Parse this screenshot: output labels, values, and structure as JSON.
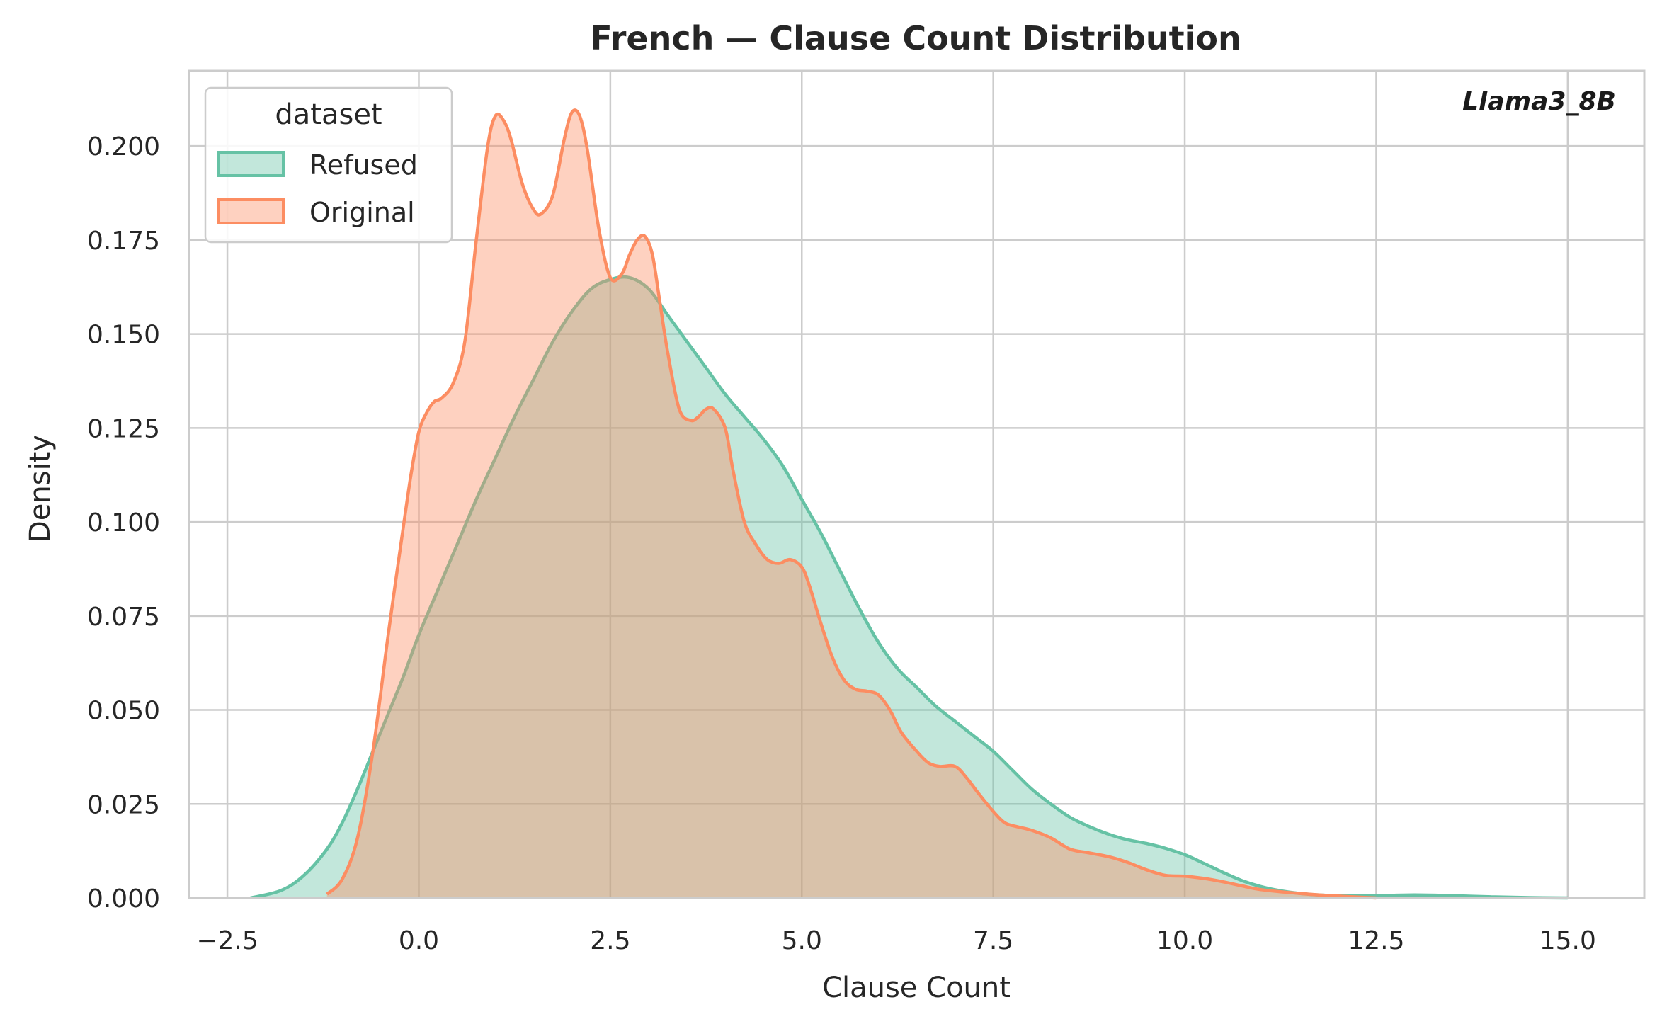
{
  "chart_data": {
    "type": "area",
    "title": "French — Clause Count Distribution",
    "xlabel": "Clause Count",
    "ylabel": "Density",
    "annotation": "Llama3_8B",
    "xlim": [
      -3.0,
      16.0
    ],
    "ylim": [
      0.0,
      0.22
    ],
    "xticks": [
      -2.5,
      0.0,
      2.5,
      5.0,
      7.5,
      10.0,
      12.5,
      15.0
    ],
    "xtick_labels": [
      "−2.5",
      "0.0",
      "2.5",
      "5.0",
      "7.5",
      "10.0",
      "12.5",
      "15.0"
    ],
    "yticks": [
      0.0,
      0.025,
      0.05,
      0.075,
      0.1,
      0.125,
      0.15,
      0.175,
      0.2
    ],
    "ytick_labels": [
      "0.000",
      "0.025",
      "0.050",
      "0.075",
      "0.100",
      "0.125",
      "0.150",
      "0.175",
      "0.200"
    ],
    "grid": true,
    "legend": {
      "title": "dataset",
      "placement": "top-left"
    },
    "series": [
      {
        "name": "Refused",
        "color": "#66c2a5",
        "x": [
          -2.2,
          -1.8,
          -1.5,
          -1.2,
          -1.0,
          -0.8,
          -0.6,
          -0.4,
          -0.2,
          0.0,
          0.25,
          0.5,
          0.75,
          1.0,
          1.25,
          1.5,
          1.75,
          2.0,
          2.25,
          2.5,
          2.75,
          3.0,
          3.25,
          3.5,
          3.75,
          4.0,
          4.25,
          4.5,
          4.75,
          5.0,
          5.25,
          5.5,
          5.75,
          6.0,
          6.25,
          6.5,
          6.75,
          7.0,
          7.25,
          7.5,
          7.75,
          8.0,
          8.25,
          8.5,
          8.75,
          9.0,
          9.25,
          9.5,
          9.75,
          10.0,
          10.25,
          10.5,
          10.75,
          11.0,
          11.25,
          11.5,
          11.75,
          12.0,
          12.5,
          13.0,
          13.5,
          14.0,
          14.5,
          15.0
        ],
        "y": [
          0.0,
          0.002,
          0.006,
          0.013,
          0.02,
          0.029,
          0.039,
          0.049,
          0.059,
          0.07,
          0.082,
          0.094,
          0.106,
          0.117,
          0.128,
          0.138,
          0.148,
          0.156,
          0.162,
          0.1645,
          0.165,
          0.162,
          0.155,
          0.148,
          0.141,
          0.134,
          0.128,
          0.122,
          0.115,
          0.106,
          0.097,
          0.087,
          0.077,
          0.068,
          0.061,
          0.056,
          0.051,
          0.047,
          0.043,
          0.039,
          0.034,
          0.029,
          0.025,
          0.0215,
          0.019,
          0.017,
          0.0155,
          0.0145,
          0.0132,
          0.0115,
          0.0092,
          0.0068,
          0.0046,
          0.003,
          0.0019,
          0.0012,
          0.0008,
          0.0006,
          0.0006,
          0.0008,
          0.0006,
          0.0003,
          0.0001,
          0.0
        ]
      },
      {
        "name": "Original",
        "color": "#fc8d62",
        "x": [
          -1.2,
          -1.0,
          -0.8,
          -0.6,
          -0.4,
          -0.2,
          -0.1,
          0.0,
          0.1,
          0.2,
          0.3,
          0.45,
          0.6,
          0.75,
          0.9,
          1.0,
          1.1,
          1.2,
          1.35,
          1.5,
          1.6,
          1.75,
          1.9,
          2.0,
          2.1,
          2.2,
          2.35,
          2.5,
          2.65,
          2.75,
          2.85,
          2.95,
          3.05,
          3.15,
          3.25,
          3.4,
          3.55,
          3.65,
          3.75,
          3.85,
          4.0,
          4.1,
          4.25,
          4.4,
          4.55,
          4.7,
          4.85,
          5.0,
          5.1,
          5.25,
          5.4,
          5.55,
          5.7,
          5.85,
          6.0,
          6.15,
          6.3,
          6.5,
          6.65,
          6.8,
          7.0,
          7.15,
          7.3,
          7.5,
          7.65,
          7.8,
          8.0,
          8.25,
          8.5,
          8.75,
          9.0,
          9.25,
          9.5,
          9.75,
          10.0,
          10.25,
          10.5,
          10.75,
          11.0,
          11.5,
          12.0,
          12.5
        ],
        "y": [
          0.001,
          0.005,
          0.016,
          0.039,
          0.07,
          0.099,
          0.113,
          0.124,
          0.129,
          0.132,
          0.133,
          0.137,
          0.148,
          0.175,
          0.2,
          0.208,
          0.207,
          0.202,
          0.19,
          0.183,
          0.182,
          0.187,
          0.202,
          0.209,
          0.208,
          0.199,
          0.178,
          0.165,
          0.166,
          0.171,
          0.175,
          0.176,
          0.171,
          0.158,
          0.145,
          0.13,
          0.127,
          0.128,
          0.13,
          0.13,
          0.125,
          0.114,
          0.1,
          0.094,
          0.09,
          0.089,
          0.09,
          0.088,
          0.083,
          0.073,
          0.064,
          0.058,
          0.0555,
          0.055,
          0.054,
          0.05,
          0.044,
          0.039,
          0.036,
          0.035,
          0.035,
          0.032,
          0.028,
          0.023,
          0.02,
          0.019,
          0.018,
          0.016,
          0.013,
          0.012,
          0.011,
          0.0095,
          0.0075,
          0.006,
          0.0058,
          0.0052,
          0.0043,
          0.0032,
          0.0022,
          0.0012,
          0.0005,
          0.0
        ]
      }
    ]
  }
}
